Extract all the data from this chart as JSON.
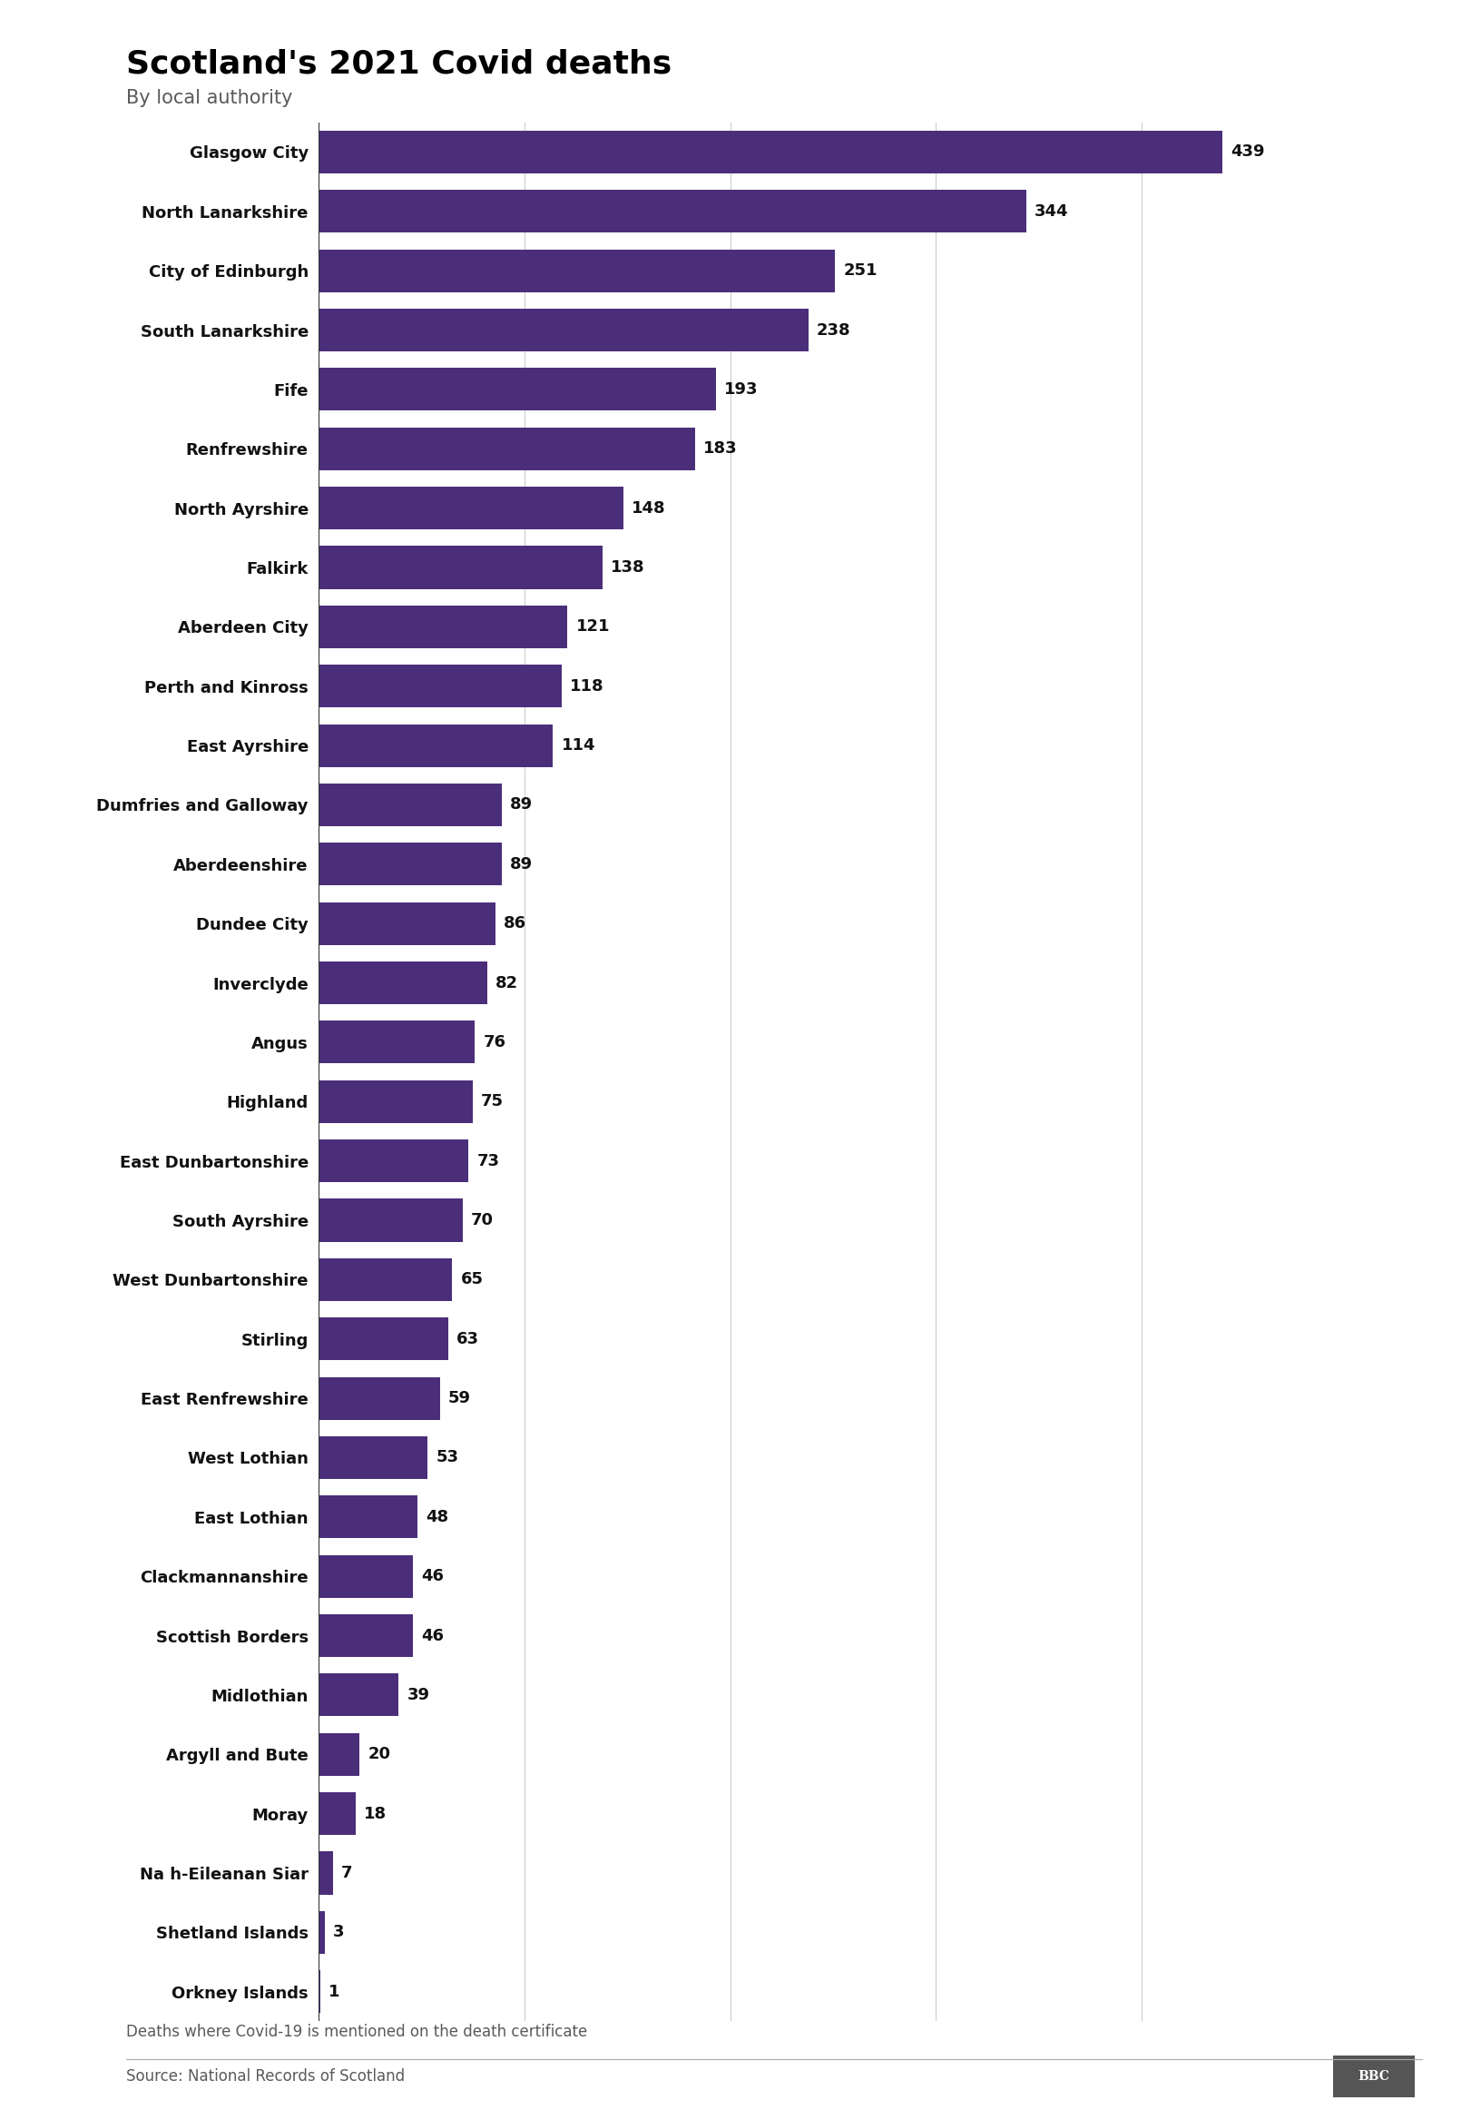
{
  "title": "Scotland's 2021 Covid deaths",
  "subtitle": "By local authority",
  "footnote": "Deaths where Covid-19 is mentioned on the death certificate",
  "source": "Source: National Records of Scotland",
  "bar_color": "#4B2E7A",
  "categories": [
    "Glasgow City",
    "North Lanarkshire",
    "City of Edinburgh",
    "South Lanarkshire",
    "Fife",
    "Renfrewshire",
    "North Ayrshire",
    "Falkirk",
    "Aberdeen City",
    "Perth and Kinross",
    "East Ayrshire",
    "Dumfries and Galloway",
    "Aberdeenshire",
    "Dundee City",
    "Inverclyde",
    "Angus",
    "Highland",
    "East Dunbartonshire",
    "South Ayrshire",
    "West Dunbartonshire",
    "Stirling",
    "East Renfrewshire",
    "West Lothian",
    "East Lothian",
    "Clackmannanshire",
    "Scottish Borders",
    "Midlothian",
    "Argyll and Bute",
    "Moray",
    "Na h-Eileanan Siar",
    "Shetland Islands",
    "Orkney Islands"
  ],
  "values": [
    439,
    344,
    251,
    238,
    193,
    183,
    148,
    138,
    121,
    118,
    114,
    89,
    89,
    86,
    82,
    76,
    75,
    73,
    70,
    65,
    63,
    59,
    53,
    48,
    46,
    46,
    39,
    20,
    18,
    7,
    3,
    1
  ],
  "xlim": [
    0,
    500
  ],
  "xtick_values": [
    0,
    100,
    200,
    300,
    400,
    500
  ],
  "background_color": "#ffffff",
  "title_fontsize": 26,
  "subtitle_fontsize": 15,
  "label_fontsize": 13,
  "value_fontsize": 13,
  "footnote_fontsize": 12,
  "source_fontsize": 12,
  "subtitle_color": "#5a5a5a",
  "footnote_color": "#5a5a5a",
  "source_color": "#5a5a5a",
  "gridline_color": "#cccccc",
  "bar_height": 0.72
}
